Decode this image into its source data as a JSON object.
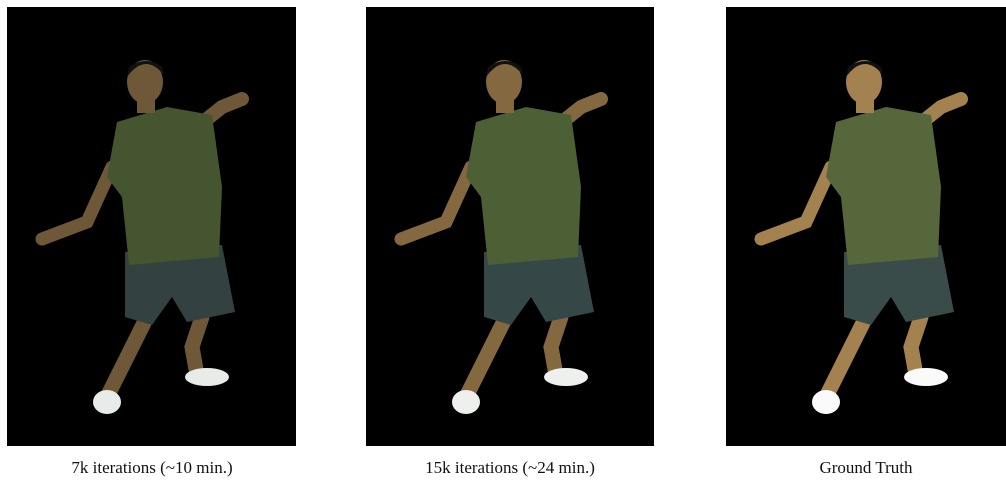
{
  "panels": [
    {
      "caption": "7k iterations (~10 min.)"
    },
    {
      "caption": "15k iterations (~24 min.)"
    },
    {
      "caption": "Ground Truth"
    }
  ]
}
